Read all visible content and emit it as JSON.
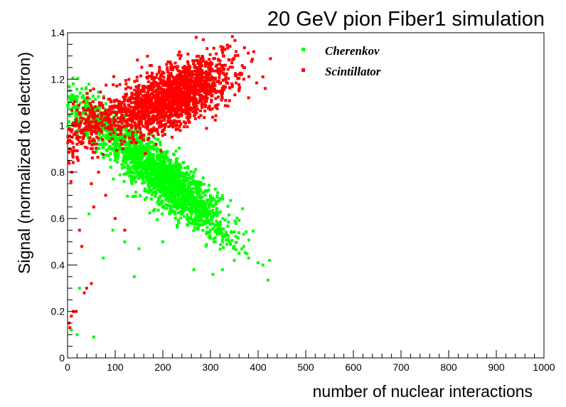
{
  "chart_data": {
    "type": "scatter",
    "title": "20 GeV pion Fiber1 simulation",
    "xlabel": "number of nuclear interactions",
    "ylabel": "Signal (normalized to electron)",
    "xlim": [
      0,
      1000
    ],
    "ylim": [
      0,
      1.4
    ],
    "xticks": [
      "0",
      "100",
      "200",
      "300",
      "400",
      "500",
      "600",
      "700",
      "800",
      "900",
      "1000"
    ],
    "yticks": [
      "0",
      "0.2",
      "0.4",
      "0.6",
      "0.8",
      "1",
      "1.2",
      "1.4"
    ],
    "legend_position": "top-right-inside",
    "series": [
      {
        "name": "Cherenkov",
        "color": "#00ff00",
        "approx_point_count": 2000,
        "points": [
          [
            5,
            1.15
          ],
          [
            8,
            1.12
          ],
          [
            12,
            1.18
          ],
          [
            15,
            1.08
          ],
          [
            18,
            1.02
          ],
          [
            10,
            1.0
          ],
          [
            22,
            0.98
          ],
          [
            30,
            0.95
          ],
          [
            40,
            0.96
          ],
          [
            50,
            0.93
          ],
          [
            60,
            0.9
          ],
          [
            70,
            0.92
          ],
          [
            80,
            0.95
          ],
          [
            90,
            0.88
          ],
          [
            100,
            0.85
          ],
          [
            110,
            0.9
          ],
          [
            120,
            0.87
          ],
          [
            130,
            0.82
          ],
          [
            140,
            0.85
          ],
          [
            150,
            0.8
          ],
          [
            160,
            0.78
          ],
          [
            170,
            0.82
          ],
          [
            180,
            0.75
          ],
          [
            190,
            0.77
          ],
          [
            200,
            0.72
          ],
          [
            210,
            0.74
          ],
          [
            220,
            0.7
          ],
          [
            230,
            0.68
          ],
          [
            240,
            0.71
          ],
          [
            250,
            0.65
          ],
          [
            260,
            0.63
          ],
          [
            270,
            0.66
          ],
          [
            280,
            0.6
          ],
          [
            290,
            0.58
          ],
          [
            300,
            0.62
          ],
          [
            310,
            0.57
          ],
          [
            320,
            0.55
          ],
          [
            330,
            0.53
          ],
          [
            340,
            0.5
          ],
          [
            350,
            0.48
          ],
          [
            360,
            0.45
          ],
          [
            370,
            0.48
          ],
          [
            380,
            0.43
          ],
          [
            400,
            0.41
          ],
          [
            410,
            0.4
          ],
          [
            95,
            0.55
          ],
          [
            120,
            0.5
          ],
          [
            150,
            0.47
          ],
          [
            140,
            0.35
          ],
          [
            200,
            0.5
          ],
          [
            20,
            0.1
          ],
          [
            25,
            0.3
          ],
          [
            55,
            0.09
          ],
          [
            75,
            0.43
          ],
          [
            265,
            0.38
          ],
          [
            305,
            0.36
          ],
          [
            325,
            0.38
          ],
          [
            350,
            0.42
          ],
          [
            8,
            0.12
          ],
          [
            45,
            0.62
          ]
        ]
      },
      {
        "name": "Scintillator",
        "color": "#ff0000",
        "approx_point_count": 2000,
        "points": [
          [
            5,
            0.9
          ],
          [
            10,
            0.95
          ],
          [
            15,
            1.0
          ],
          [
            20,
            0.92
          ],
          [
            25,
            1.05
          ],
          [
            30,
            0.98
          ],
          [
            40,
            1.02
          ],
          [
            50,
            0.97
          ],
          [
            60,
            1.0
          ],
          [
            70,
            1.03
          ],
          [
            80,
            0.99
          ],
          [
            90,
            1.05
          ],
          [
            100,
            1.0
          ],
          [
            110,
            1.08
          ],
          [
            120,
            1.02
          ],
          [
            130,
            1.06
          ],
          [
            140,
            1.1
          ],
          [
            150,
            1.04
          ],
          [
            160,
            1.08
          ],
          [
            170,
            1.12
          ],
          [
            180,
            1.06
          ],
          [
            190,
            1.1
          ],
          [
            200,
            1.15
          ],
          [
            210,
            1.08
          ],
          [
            220,
            1.12
          ],
          [
            230,
            1.18
          ],
          [
            240,
            1.1
          ],
          [
            250,
            1.14
          ],
          [
            260,
            1.2
          ],
          [
            270,
            1.16
          ],
          [
            280,
            1.22
          ],
          [
            290,
            1.18
          ],
          [
            300,
            1.25
          ],
          [
            310,
            1.2
          ],
          [
            320,
            1.28
          ],
          [
            330,
            1.22
          ],
          [
            345,
            1.18
          ],
          [
            360,
            1.15
          ],
          [
            370,
            1.2
          ],
          [
            380,
            1.12
          ],
          [
            410,
            1.21
          ],
          [
            415,
            1.16
          ],
          [
            270,
            1.38
          ],
          [
            285,
            1.37
          ],
          [
            40,
            0.3
          ],
          [
            50,
            0.32
          ],
          [
            35,
            0.28
          ],
          [
            18,
            0.2
          ],
          [
            8,
            0.18
          ],
          [
            5,
            0.13
          ],
          [
            25,
            0.55
          ],
          [
            55,
            0.65
          ],
          [
            65,
            0.8
          ],
          [
            80,
            0.7
          ],
          [
            100,
            0.6
          ],
          [
            120,
            0.55
          ],
          [
            30,
            0.48
          ],
          [
            50,
            0.75
          ],
          [
            12,
            0.2
          ],
          [
            3,
            0.15
          ]
        ]
      }
    ]
  }
}
